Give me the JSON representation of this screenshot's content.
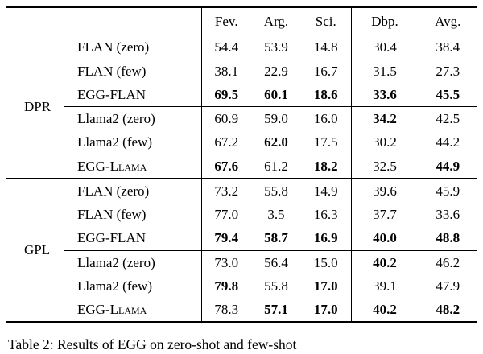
{
  "table": {
    "columns": [
      "Fev.",
      "Arg.",
      "Sci.",
      "Dbp.",
      "Avg."
    ],
    "groups": [
      {
        "label": "DPR",
        "subgroups": [
          {
            "rows": [
              {
                "model": "FLAN (zero)",
                "smallcaps": false,
                "values": [
                  "54.4",
                  "53.9",
                  "14.8",
                  "30.4",
                  "38.4"
                ],
                "bold": [
                  false,
                  false,
                  false,
                  false,
                  false
                ]
              },
              {
                "model": "FLAN (few)",
                "smallcaps": false,
                "values": [
                  "38.1",
                  "22.9",
                  "16.7",
                  "31.5",
                  "27.3"
                ],
                "bold": [
                  false,
                  false,
                  false,
                  false,
                  false
                ]
              },
              {
                "model": "EGG-FLAN",
                "smallcaps": false,
                "values": [
                  "69.5",
                  "60.1",
                  "18.6",
                  "33.6",
                  "45.5"
                ],
                "bold": [
                  true,
                  true,
                  true,
                  true,
                  true
                ]
              }
            ]
          },
          {
            "rows": [
              {
                "model": "Llama2 (zero)",
                "smallcaps": false,
                "values": [
                  "60.9",
                  "59.0",
                  "16.0",
                  "34.2",
                  "42.5"
                ],
                "bold": [
                  false,
                  false,
                  false,
                  true,
                  false
                ]
              },
              {
                "model": "Llama2 (few)",
                "smallcaps": false,
                "values": [
                  "67.2",
                  "62.0",
                  "17.5",
                  "30.2",
                  "44.2"
                ],
                "bold": [
                  false,
                  true,
                  false,
                  false,
                  false
                ]
              },
              {
                "model": "EGG-Llama",
                "smallcaps": true,
                "values": [
                  "67.6",
                  "61.2",
                  "18.2",
                  "32.5",
                  "44.9"
                ],
                "bold": [
                  true,
                  false,
                  true,
                  false,
                  true
                ]
              }
            ]
          }
        ]
      },
      {
        "label": "GPL",
        "subgroups": [
          {
            "rows": [
              {
                "model": "FLAN (zero)",
                "smallcaps": false,
                "values": [
                  "73.2",
                  "55.8",
                  "14.9",
                  "39.6",
                  "45.9"
                ],
                "bold": [
                  false,
                  false,
                  false,
                  false,
                  false
                ]
              },
              {
                "model": "FLAN (few)",
                "smallcaps": false,
                "values": [
                  "77.0",
                  "3.5",
                  "16.3",
                  "37.7",
                  "33.6"
                ],
                "bold": [
                  false,
                  false,
                  false,
                  false,
                  false
                ]
              },
              {
                "model": "EGG-FLAN",
                "smallcaps": false,
                "values": [
                  "79.4",
                  "58.7",
                  "16.9",
                  "40.0",
                  "48.8"
                ],
                "bold": [
                  true,
                  true,
                  true,
                  true,
                  true
                ]
              }
            ]
          },
          {
            "rows": [
              {
                "model": "Llama2 (zero)",
                "smallcaps": false,
                "values": [
                  "73.0",
                  "56.4",
                  "15.0",
                  "40.2",
                  "46.2"
                ],
                "bold": [
                  false,
                  false,
                  false,
                  true,
                  false
                ]
              },
              {
                "model": "Llama2 (few)",
                "smallcaps": false,
                "values": [
                  "79.8",
                  "55.8",
                  "17.0",
                  "39.1",
                  "47.9"
                ],
                "bold": [
                  true,
                  false,
                  true,
                  false,
                  false
                ]
              },
              {
                "model": "EGG-Llama",
                "smallcaps": true,
                "values": [
                  "78.3",
                  "57.1",
                  "17.0",
                  "40.2",
                  "48.2"
                ],
                "bold": [
                  false,
                  true,
                  true,
                  true,
                  true
                ]
              }
            ]
          }
        ]
      }
    ],
    "caption": "Table 2:  Results of EGG on zero-shot and few-shot"
  }
}
